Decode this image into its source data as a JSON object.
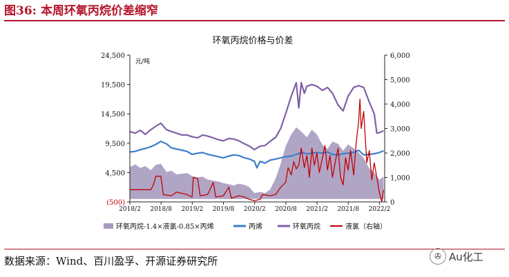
{
  "figure": {
    "label": "图36:",
    "title": "本周环氧丙烷价差缩窄",
    "source": "数据来源：Wind、百川盈孚、开源证券研究所",
    "watermark": "Au化工",
    "watermark_icon": "wechat-icon"
  },
  "chart_data": {
    "type": "area+line",
    "title": "环氧丙烷价格与价差",
    "unit_label": "元/吨",
    "y_left": {
      "min": -500,
      "max": 24500,
      "ticks": [
        -500,
        4500,
        9500,
        14500,
        19500,
        24500
      ],
      "tick_labels": [
        "(500)",
        "4,500",
        "9,500",
        "14,500",
        "19,500",
        "24,500"
      ]
    },
    "y_right": {
      "min": 0,
      "max": 6000,
      "ticks": [
        0,
        1000,
        2000,
        3000,
        4000,
        5000,
        6000
      ],
      "tick_labels": [
        "0",
        "1,000",
        "2,000",
        "3,000",
        "4,000",
        "5,000",
        "6,000"
      ]
    },
    "x_range": [
      2018.0833,
      2022.1667
    ],
    "x_ticks": [
      "2018/2",
      "2018/8",
      "2019/2",
      "2019/8",
      "2020/2",
      "2020/8",
      "2021/2",
      "2021/8",
      "2022/2"
    ],
    "x_tick_values": [
      2018.0833,
      2018.5833,
      2019.0833,
      2019.5833,
      2020.0833,
      2020.5833,
      2021.0833,
      2021.5833,
      2022.0833
    ],
    "series": [
      {
        "name": "环氧丙烷-1.4×液氯-0.85×丙烯",
        "type": "area",
        "axis": "left",
        "color": "#a99bc0",
        "points": [
          [
            2018.08,
            5400
          ],
          [
            2018.17,
            5900
          ],
          [
            2018.25,
            5300
          ],
          [
            2018.33,
            5600
          ],
          [
            2018.42,
            4900
          ],
          [
            2018.5,
            5800
          ],
          [
            2018.58,
            6000
          ],
          [
            2018.67,
            4600
          ],
          [
            2018.75,
            4800
          ],
          [
            2018.83,
            4200
          ],
          [
            2018.92,
            4300
          ],
          [
            2019.0,
            4400
          ],
          [
            2019.08,
            3900
          ],
          [
            2019.17,
            3700
          ],
          [
            2019.25,
            3800
          ],
          [
            2019.33,
            3300
          ],
          [
            2019.42,
            3100
          ],
          [
            2019.5,
            3000
          ],
          [
            2019.58,
            2700
          ],
          [
            2019.67,
            2500
          ],
          [
            2019.75,
            2300
          ],
          [
            2019.83,
            2600
          ],
          [
            2019.92,
            2400
          ],
          [
            2020.0,
            2000
          ],
          [
            2020.08,
            1000
          ],
          [
            2020.17,
            1200
          ],
          [
            2020.25,
            1000
          ],
          [
            2020.33,
            1600
          ],
          [
            2020.42,
            3500
          ],
          [
            2020.5,
            6000
          ],
          [
            2020.58,
            9000
          ],
          [
            2020.67,
            11000
          ],
          [
            2020.75,
            12200
          ],
          [
            2020.83,
            11500
          ],
          [
            2020.92,
            10500
          ],
          [
            2021.0,
            11800
          ],
          [
            2021.08,
            11000
          ],
          [
            2021.17,
            9200
          ],
          [
            2021.25,
            8500
          ],
          [
            2021.33,
            9800
          ],
          [
            2021.42,
            9400
          ],
          [
            2021.5,
            8200
          ],
          [
            2021.58,
            9300
          ],
          [
            2021.67,
            8600
          ],
          [
            2021.75,
            7900
          ],
          [
            2021.83,
            7000
          ],
          [
            2021.92,
            5200
          ],
          [
            2022.0,
            4500
          ],
          [
            2022.08,
            3300
          ],
          [
            2022.15,
            3800
          ]
        ]
      },
      {
        "name": "丙烯",
        "type": "line",
        "axis": "left",
        "color": "#3d7cc9",
        "points": [
          [
            2018.08,
            8000
          ],
          [
            2018.17,
            8100
          ],
          [
            2018.25,
            8400
          ],
          [
            2018.33,
            8600
          ],
          [
            2018.42,
            8900
          ],
          [
            2018.5,
            9300
          ],
          [
            2018.58,
            9800
          ],
          [
            2018.67,
            9400
          ],
          [
            2018.75,
            8700
          ],
          [
            2018.83,
            8500
          ],
          [
            2018.92,
            8300
          ],
          [
            2019.0,
            8100
          ],
          [
            2019.08,
            7600
          ],
          [
            2019.17,
            7800
          ],
          [
            2019.25,
            7900
          ],
          [
            2019.33,
            7600
          ],
          [
            2019.42,
            7400
          ],
          [
            2019.5,
            7200
          ],
          [
            2019.58,
            7000
          ],
          [
            2019.67,
            7300
          ],
          [
            2019.75,
            7500
          ],
          [
            2019.83,
            7400
          ],
          [
            2019.92,
            7000
          ],
          [
            2020.0,
            6800
          ],
          [
            2020.08,
            6400
          ],
          [
            2020.12,
            5300
          ],
          [
            2020.17,
            6400
          ],
          [
            2020.25,
            6100
          ],
          [
            2020.33,
            6600
          ],
          [
            2020.42,
            6800
          ],
          [
            2020.5,
            7000
          ],
          [
            2020.58,
            7200
          ],
          [
            2020.67,
            7300
          ],
          [
            2020.75,
            7600
          ],
          [
            2020.83,
            7900
          ],
          [
            2020.92,
            7700
          ],
          [
            2021.0,
            7800
          ],
          [
            2021.08,
            7900
          ],
          [
            2021.17,
            7800
          ],
          [
            2021.25,
            8000
          ],
          [
            2021.33,
            7600
          ],
          [
            2021.42,
            7500
          ],
          [
            2021.5,
            7700
          ],
          [
            2021.58,
            7800
          ],
          [
            2021.67,
            7900
          ],
          [
            2021.75,
            8300
          ],
          [
            2021.83,
            7500
          ],
          [
            2021.92,
            7600
          ],
          [
            2022.0,
            7700
          ],
          [
            2022.08,
            7900
          ],
          [
            2022.15,
            8200
          ]
        ]
      },
      {
        "name": "环氧丙烷",
        "type": "line",
        "axis": "left",
        "color": "#7f5fa8",
        "points": [
          [
            2018.08,
            11500
          ],
          [
            2018.17,
            11200
          ],
          [
            2018.25,
            11700
          ],
          [
            2018.33,
            11000
          ],
          [
            2018.42,
            11800
          ],
          [
            2018.5,
            12400
          ],
          [
            2018.58,
            12900
          ],
          [
            2018.67,
            11800
          ],
          [
            2018.75,
            11500
          ],
          [
            2018.83,
            11200
          ],
          [
            2018.92,
            10900
          ],
          [
            2019.0,
            10900
          ],
          [
            2019.08,
            10600
          ],
          [
            2019.17,
            10400
          ],
          [
            2019.25,
            10900
          ],
          [
            2019.33,
            10700
          ],
          [
            2019.42,
            10400
          ],
          [
            2019.5,
            10100
          ],
          [
            2019.58,
            9900
          ],
          [
            2019.67,
            10300
          ],
          [
            2019.75,
            10200
          ],
          [
            2019.83,
            9900
          ],
          [
            2019.92,
            9400
          ],
          [
            2020.0,
            9000
          ],
          [
            2020.08,
            8400
          ],
          [
            2020.17,
            9000
          ],
          [
            2020.25,
            9100
          ],
          [
            2020.33,
            9800
          ],
          [
            2020.42,
            10500
          ],
          [
            2020.5,
            12000
          ],
          [
            2020.58,
            14500
          ],
          [
            2020.67,
            17500
          ],
          [
            2020.75,
            19800
          ],
          [
            2020.79,
            15500
          ],
          [
            2020.83,
            19800
          ],
          [
            2020.88,
            18000
          ],
          [
            2020.92,
            19200
          ],
          [
            2021.0,
            19500
          ],
          [
            2021.08,
            19200
          ],
          [
            2021.17,
            18500
          ],
          [
            2021.25,
            19000
          ],
          [
            2021.33,
            18000
          ],
          [
            2021.42,
            16000
          ],
          [
            2021.5,
            15000
          ],
          [
            2021.58,
            17500
          ],
          [
            2021.67,
            19000
          ],
          [
            2021.75,
            19300
          ],
          [
            2021.83,
            19000
          ],
          [
            2021.92,
            16500
          ],
          [
            2022.0,
            14500
          ],
          [
            2022.04,
            11200
          ],
          [
            2022.08,
            11300
          ],
          [
            2022.15,
            11600
          ]
        ]
      },
      {
        "name": "液氯（右轴）",
        "type": "line",
        "axis": "right",
        "color": "#c00000",
        "points": [
          [
            2018.08,
            500
          ],
          [
            2018.42,
            500
          ],
          [
            2018.46,
            700
          ],
          [
            2018.5,
            1050
          ],
          [
            2018.58,
            1050
          ],
          [
            2018.62,
            300
          ],
          [
            2018.75,
            250
          ],
          [
            2018.83,
            400
          ],
          [
            2019.0,
            300
          ],
          [
            2019.08,
            200
          ],
          [
            2019.1,
            1000
          ],
          [
            2019.17,
            950
          ],
          [
            2019.21,
            250
          ],
          [
            2019.33,
            300
          ],
          [
            2019.42,
            800
          ],
          [
            2019.46,
            200
          ],
          [
            2019.58,
            250
          ],
          [
            2019.67,
            600
          ],
          [
            2019.71,
            150
          ],
          [
            2019.83,
            250
          ],
          [
            2019.92,
            200
          ],
          [
            2020.0,
            100
          ],
          [
            2020.08,
            50
          ],
          [
            2020.17,
            100
          ],
          [
            2020.21,
            300
          ],
          [
            2020.33,
            250
          ],
          [
            2020.42,
            300
          ],
          [
            2020.5,
            600
          ],
          [
            2020.58,
            800
          ],
          [
            2020.62,
            1400
          ],
          [
            2020.67,
            1100
          ],
          [
            2020.71,
            1650
          ],
          [
            2020.75,
            1350
          ],
          [
            2020.79,
            1500
          ],
          [
            2020.83,
            2200
          ],
          [
            2020.88,
            1400
          ],
          [
            2020.92,
            1900
          ],
          [
            2020.96,
            1000
          ],
          [
            2021.0,
            2200
          ],
          [
            2021.04,
            1500
          ],
          [
            2021.08,
            2000
          ],
          [
            2021.12,
            1200
          ],
          [
            2021.17,
            1800
          ],
          [
            2021.21,
            2300
          ],
          [
            2021.25,
            1300
          ],
          [
            2021.29,
            1900
          ],
          [
            2021.33,
            1000
          ],
          [
            2021.38,
            1700
          ],
          [
            2021.42,
            2200
          ],
          [
            2021.46,
            1000
          ],
          [
            2021.5,
            700
          ],
          [
            2021.54,
            1800
          ],
          [
            2021.58,
            1300
          ],
          [
            2021.62,
            2100
          ],
          [
            2021.67,
            1100
          ],
          [
            2021.71,
            2400
          ],
          [
            2021.75,
            3300
          ],
          [
            2021.77,
            4200
          ],
          [
            2021.79,
            3000
          ],
          [
            2021.83,
            3700
          ],
          [
            2021.88,
            1600
          ],
          [
            2021.92,
            2100
          ],
          [
            2021.96,
            900
          ],
          [
            2022.0,
            1600
          ],
          [
            2022.04,
            1000
          ],
          [
            2022.08,
            400
          ],
          [
            2022.12,
            0
          ],
          [
            2022.15,
            500
          ]
        ]
      }
    ]
  }
}
